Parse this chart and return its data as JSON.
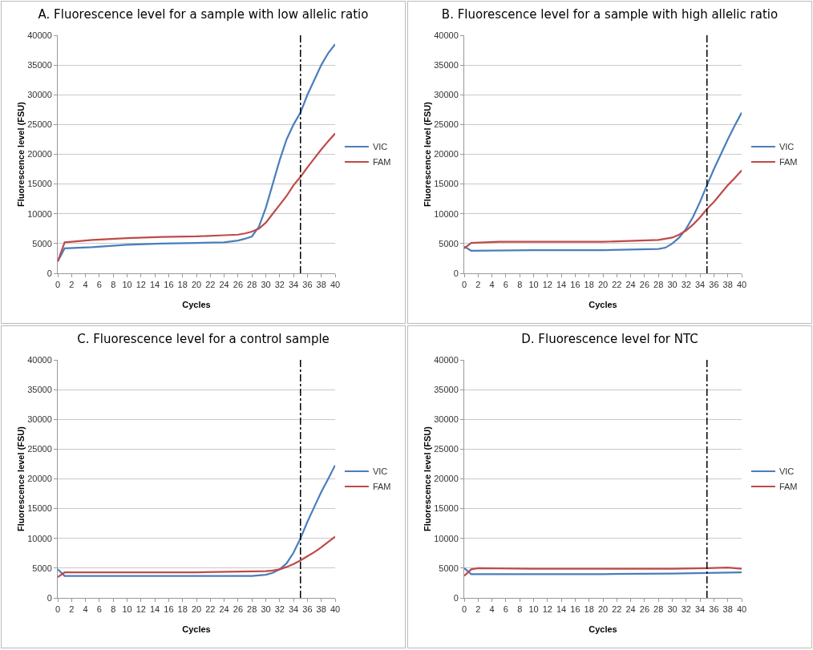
{
  "chart_data": [
    {
      "type": "line",
      "title": "A. Fluorescence level for a sample with low allelic ratio",
      "xlabel": "Cycles",
      "ylabel": "Fluorescence level (FSU)",
      "xlim": [
        0,
        40
      ],
      "xticks": [
        0,
        2,
        4,
        6,
        8,
        10,
        12,
        14,
        16,
        18,
        20,
        22,
        24,
        26,
        28,
        30,
        32,
        34,
        36,
        38,
        40
      ],
      "ylim": [
        0,
        40000
      ],
      "yticks": [
        0,
        5000,
        10000,
        15000,
        20000,
        25000,
        30000,
        35000,
        40000
      ],
      "grid": "y",
      "legend": "right",
      "marker": "none",
      "line_style": "solid",
      "series": [
        {
          "name": "VIC",
          "color": "#4a7ebb",
          "x": [
            0,
            1,
            5,
            10,
            15,
            20,
            24,
            26,
            27,
            28,
            29,
            30,
            31,
            32,
            33,
            34,
            35,
            36,
            37,
            38,
            39,
            40
          ],
          "values": [
            2000,
            4200,
            4400,
            4800,
            5000,
            5100,
            5200,
            5500,
            5800,
            6200,
            7800,
            11000,
            15000,
            19000,
            22500,
            25000,
            27000,
            30000,
            32500,
            35000,
            37000,
            38500
          ]
        },
        {
          "name": "FAM",
          "color": "#be4b48",
          "x": [
            0,
            1,
            2,
            5,
            10,
            15,
            20,
            24,
            26,
            27,
            28,
            29,
            30,
            31,
            32,
            33,
            34,
            35,
            36,
            37,
            38,
            39,
            40
          ],
          "values": [
            2000,
            5200,
            5300,
            5600,
            5900,
            6100,
            6200,
            6400,
            6500,
            6700,
            7000,
            7500,
            8500,
            10000,
            11500,
            13000,
            14800,
            16200,
            17800,
            19300,
            20800,
            22200,
            23500
          ]
        }
      ],
      "ref_lines": [
        {
          "axis": "x",
          "value": 35,
          "color": "#000000",
          "line_style": "dashdot"
        }
      ]
    },
    {
      "type": "line",
      "title": "B. Fluorescence level for a sample with high allelic ratio",
      "xlabel": "Cycles",
      "ylabel": "Fluorescence level (FSU)",
      "xlim": [
        0,
        40
      ],
      "xticks": [
        0,
        2,
        4,
        6,
        8,
        10,
        12,
        14,
        16,
        18,
        20,
        22,
        24,
        26,
        28,
        30,
        32,
        34,
        36,
        38,
        40
      ],
      "ylim": [
        0,
        40000
      ],
      "yticks": [
        0,
        5000,
        10000,
        15000,
        20000,
        25000,
        30000,
        35000,
        40000
      ],
      "grid": "y",
      "legend": "right",
      "marker": "none",
      "line_style": "solid",
      "series": [
        {
          "name": "VIC",
          "color": "#4a7ebb",
          "x": [
            0,
            1,
            10,
            20,
            28,
            29,
            30,
            31,
            32,
            33,
            34,
            35,
            36,
            37,
            38,
            39,
            40
          ],
          "values": [
            4500,
            3800,
            3900,
            3900,
            4100,
            4300,
            5000,
            6000,
            7500,
            9500,
            12000,
            14800,
            17500,
            20000,
            22500,
            24800,
            27000
          ]
        },
        {
          "name": "FAM",
          "color": "#be4b48",
          "x": [
            0,
            1,
            5,
            20,
            28,
            29,
            30,
            31,
            32,
            33,
            34,
            35,
            36,
            37,
            38,
            39,
            40
          ],
          "values": [
            4200,
            5100,
            5300,
            5300,
            5600,
            5800,
            6000,
            6500,
            7200,
            8200,
            9400,
            10800,
            12000,
            13400,
            14800,
            16000,
            17300
          ]
        }
      ],
      "ref_lines": [
        {
          "axis": "x",
          "value": 35,
          "color": "#000000",
          "line_style": "dashdot"
        }
      ]
    },
    {
      "type": "line",
      "title": "C. Fluorescence level for a control sample",
      "xlabel": "Cycles",
      "ylabel": "Fluorescence level (FSU)",
      "xlim": [
        0,
        40
      ],
      "xticks": [
        0,
        2,
        4,
        6,
        8,
        10,
        12,
        14,
        16,
        18,
        20,
        22,
        24,
        26,
        28,
        30,
        32,
        34,
        36,
        38,
        40
      ],
      "ylim": [
        0,
        40000
      ],
      "yticks": [
        0,
        5000,
        10000,
        15000,
        20000,
        25000,
        30000,
        35000,
        40000
      ],
      "grid": "y",
      "legend": "right",
      "marker": "none",
      "line_style": "solid",
      "series": [
        {
          "name": "VIC",
          "color": "#4a7ebb",
          "x": [
            0,
            1,
            10,
            20,
            28,
            30,
            31,
            32,
            33,
            34,
            35,
            36,
            37,
            38,
            39,
            40
          ],
          "values": [
            4800,
            3700,
            3700,
            3700,
            3700,
            3900,
            4200,
            4800,
            5800,
            7600,
            10000,
            12800,
            15300,
            17800,
            20000,
            22300
          ]
        },
        {
          "name": "FAM",
          "color": "#be4b48",
          "x": [
            0,
            1,
            10,
            20,
            30,
            31,
            32,
            33,
            34,
            35,
            36,
            37,
            38,
            39,
            40
          ],
          "values": [
            3500,
            4300,
            4300,
            4300,
            4500,
            4600,
            4800,
            5200,
            5700,
            6300,
            7000,
            7700,
            8500,
            9400,
            10300
          ]
        }
      ],
      "ref_lines": [
        {
          "axis": "x",
          "value": 35,
          "color": "#000000",
          "line_style": "dashdot"
        }
      ]
    },
    {
      "type": "line",
      "title": "D. Fluorescence level for NTC",
      "xlabel": "Cycles",
      "ylabel": "Fluorescence level (FSU)",
      "xlim": [
        0,
        40
      ],
      "xticks": [
        0,
        2,
        4,
        6,
        8,
        10,
        12,
        14,
        16,
        18,
        20,
        22,
        24,
        26,
        28,
        30,
        32,
        34,
        36,
        38,
        40
      ],
      "ylim": [
        0,
        40000
      ],
      "yticks": [
        0,
        5000,
        10000,
        15000,
        20000,
        25000,
        30000,
        35000,
        40000
      ],
      "grid": "y",
      "legend": "right",
      "marker": "none",
      "line_style": "solid",
      "series": [
        {
          "name": "VIC",
          "color": "#4a7ebb",
          "x": [
            0,
            1,
            10,
            20,
            30,
            35,
            40
          ],
          "values": [
            5000,
            4000,
            4000,
            4000,
            4100,
            4200,
            4300
          ]
        },
        {
          "name": "FAM",
          "color": "#be4b48",
          "x": [
            0,
            1,
            2,
            10,
            20,
            30,
            35,
            38,
            40
          ],
          "values": [
            3700,
            4800,
            5000,
            4900,
            4900,
            4900,
            5000,
            5100,
            4900
          ]
        }
      ],
      "ref_lines": [
        {
          "axis": "x",
          "value": 35,
          "color": "#000000",
          "line_style": "dashdot"
        }
      ]
    }
  ]
}
